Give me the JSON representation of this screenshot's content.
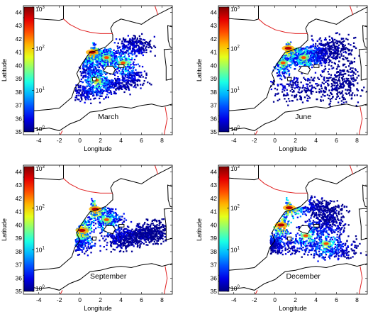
{
  "chart_data": [
    {
      "type": "heatmap",
      "panel_label": "March",
      "xlabel": "Longitude",
      "ylabel": "Latitude",
      "xlim": [
        -5.5,
        9
      ],
      "ylim": [
        34.8,
        44.5
      ],
      "x_ticks": [
        "-4",
        "-2",
        "0",
        "2",
        "4",
        "6",
        "8"
      ],
      "y_ticks": [
        "35",
        "36",
        "37",
        "38",
        "39",
        "40",
        "41",
        "42",
        "43",
        "44"
      ],
      "colorbar": {
        "scale": "log",
        "range": [
          1,
          1000
        ],
        "ticks": [
          "10^0",
          "10^1",
          "10^2",
          "10^3"
        ]
      },
      "hotspots": [
        {
          "lon": 1.2,
          "lat": 41.0,
          "level": "high"
        },
        {
          "lon": 2.6,
          "lat": 40.6,
          "level": "medium"
        },
        {
          "lon": 4.2,
          "lat": 40.2,
          "level": "medium"
        },
        {
          "lon": 1.6,
          "lat": 38.9,
          "level": "medium"
        }
      ]
    },
    {
      "type": "heatmap",
      "panel_label": "June",
      "xlabel": "Longitude",
      "ylabel": "Latitude",
      "xlim": [
        -5.5,
        9
      ],
      "ylim": [
        34.8,
        44.5
      ],
      "x_ticks": [
        "-4",
        "-2",
        "0",
        "2",
        "4",
        "6",
        "8"
      ],
      "y_ticks": [
        "35",
        "36",
        "37",
        "38",
        "39",
        "40",
        "41",
        "42",
        "43",
        "44"
      ],
      "colorbar": {
        "scale": "log",
        "range": [
          1,
          1000
        ],
        "ticks": [
          "10^0",
          "10^1",
          "10^2",
          "10^3"
        ]
      },
      "hotspots": [
        {
          "lon": 1.3,
          "lat": 41.3,
          "level": "high"
        },
        {
          "lon": 2.8,
          "lat": 40.6,
          "level": "medium"
        },
        {
          "lon": 0.8,
          "lat": 40.2,
          "level": "medium"
        }
      ]
    },
    {
      "type": "heatmap",
      "panel_label": "September",
      "xlabel": "Longitude",
      "ylabel": "Latitude",
      "xlim": [
        -5.5,
        9
      ],
      "ylim": [
        34.8,
        44.5
      ],
      "x_ticks": [
        "-4",
        "-2",
        "0",
        "2",
        "4",
        "6",
        "8"
      ],
      "y_ticks": [
        "35",
        "36",
        "37",
        "38",
        "39",
        "40",
        "41",
        "42",
        "43",
        "44"
      ],
      "colorbar": {
        "scale": "log",
        "range": [
          1,
          1000
        ],
        "ticks": [
          "10^0",
          "10^1",
          "10^2",
          "10^3"
        ]
      },
      "hotspots": [
        {
          "lon": 1.5,
          "lat": 41.2,
          "level": "high"
        },
        {
          "lon": 0.2,
          "lat": 39.6,
          "level": "high"
        },
        {
          "lon": 2.6,
          "lat": 40.4,
          "level": "medium"
        }
      ]
    },
    {
      "type": "heatmap",
      "panel_label": "December",
      "xlabel": "Longitude",
      "ylabel": "Latitude",
      "xlim": [
        -5.5,
        9
      ],
      "ylim": [
        34.8,
        44.5
      ],
      "x_ticks": [
        "-4",
        "-2",
        "0",
        "2",
        "4",
        "6",
        "8"
      ],
      "y_ticks": [
        "35",
        "36",
        "37",
        "38",
        "39",
        "40",
        "41",
        "42",
        "43",
        "44"
      ],
      "colorbar": {
        "scale": "log",
        "range": [
          1,
          1000
        ],
        "ticks": [
          "10^0",
          "10^1",
          "10^2",
          "10^3"
        ]
      },
      "hotspots": [
        {
          "lon": 1.4,
          "lat": 41.3,
          "level": "high"
        },
        {
          "lon": 0.6,
          "lat": 40.0,
          "level": "high"
        },
        {
          "lon": 3.0,
          "lat": 39.2,
          "level": "medium"
        },
        {
          "lon": 5.0,
          "lat": 38.6,
          "level": "medium"
        }
      ]
    }
  ],
  "colors": {
    "coastline": "#000000",
    "border": "#e02020",
    "land": "#ffffff"
  }
}
